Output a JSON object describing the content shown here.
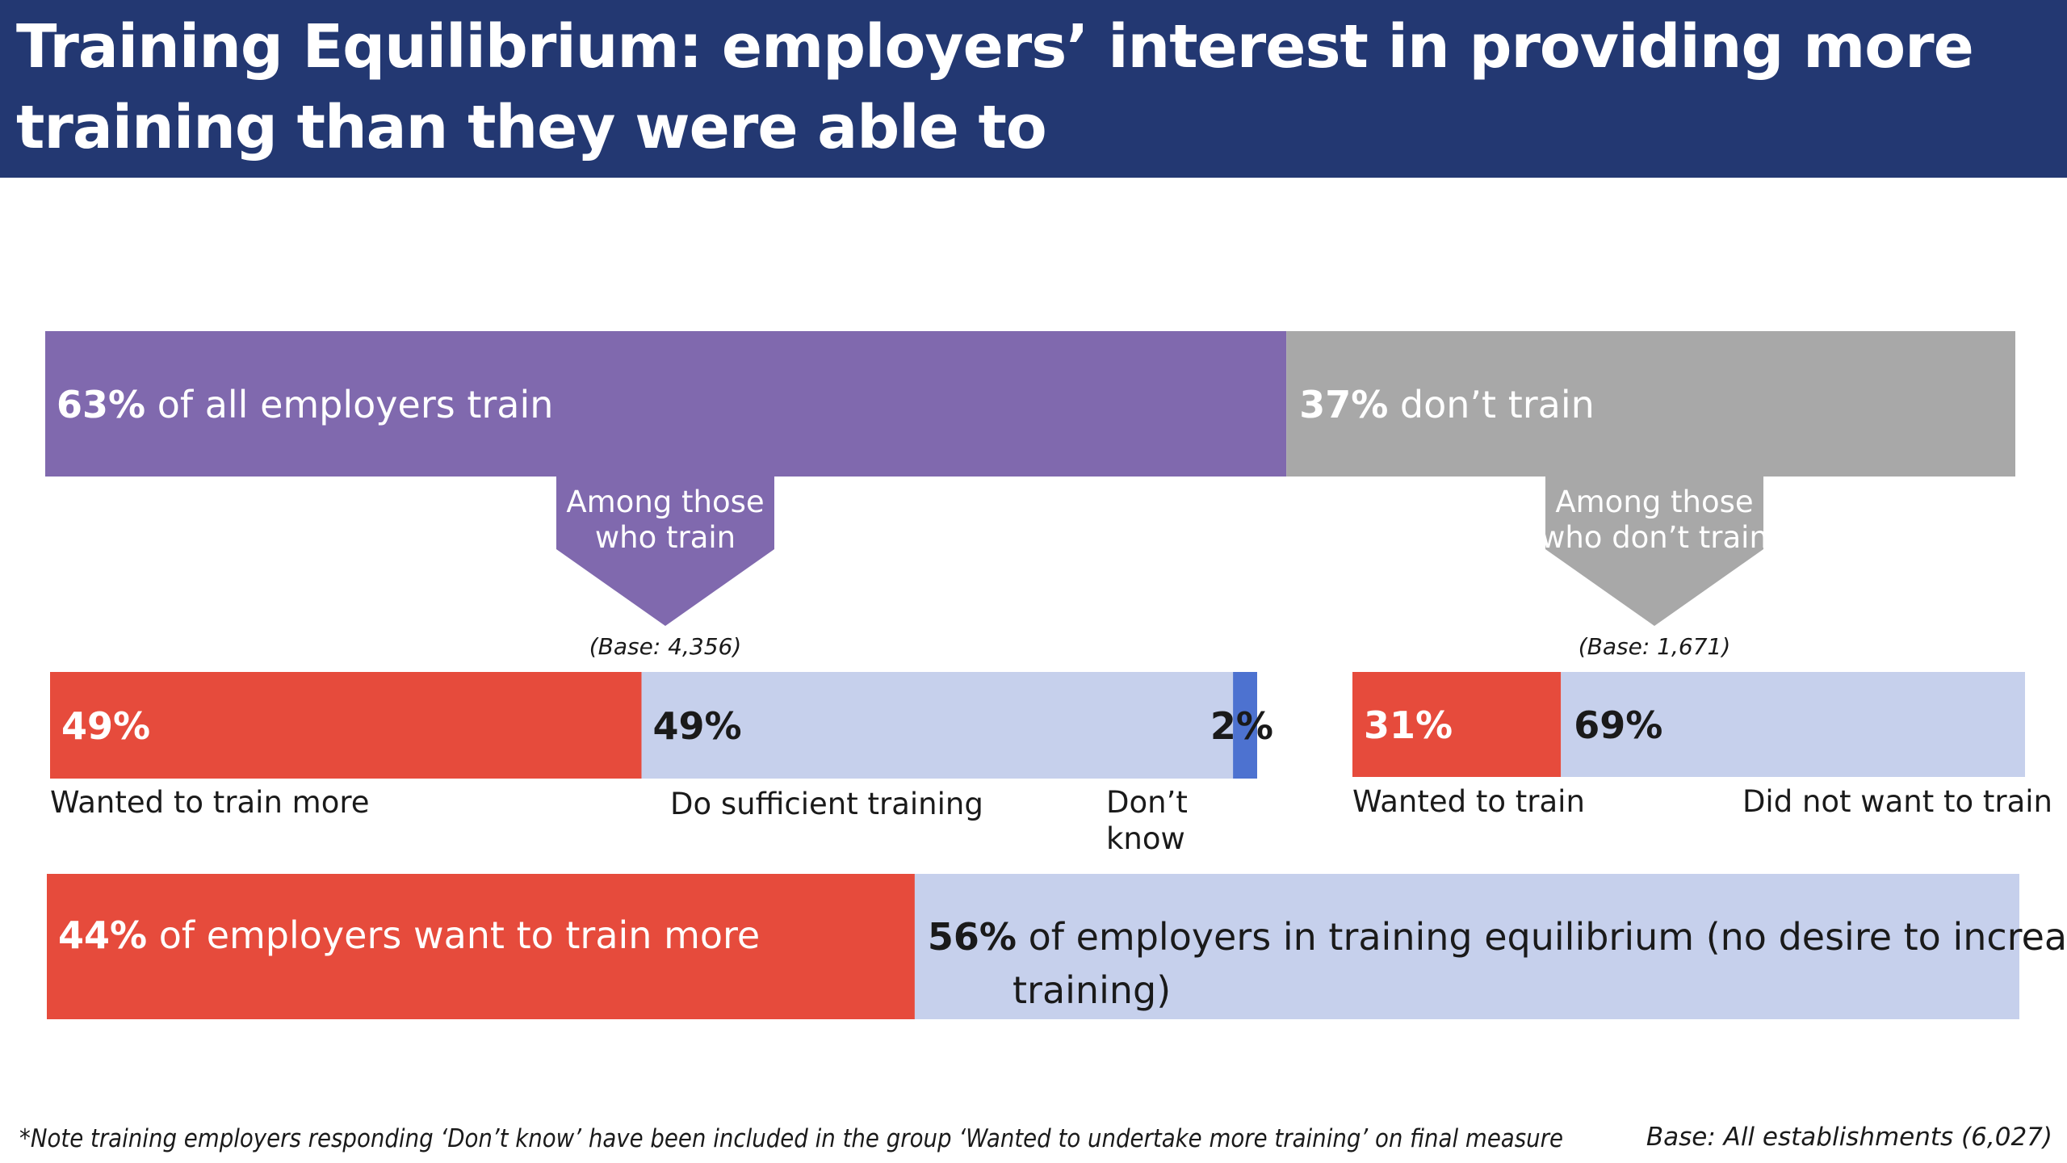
{
  "title": "Training Equilibrium: employers’ interest in providing more training than they were able to",
  "colors": {
    "header_bg": "#233872",
    "train": "#8069AE",
    "dont_train": "#A8A8A8",
    "wanted": "#E64B3C",
    "light": "#C6D0EC",
    "dont_know": "#4D72D0",
    "white_text": "#FFFFFF",
    "dark_text": "#1A1A1A"
  },
  "chart_data": [
    {
      "type": "bar",
      "orientation": "horizontal-stacked",
      "series": [
        {
          "name": "of all employers train",
          "value": 63,
          "label": "63%"
        },
        {
          "name": "don’t train",
          "value": 37,
          "label": "37%"
        }
      ]
    },
    {
      "type": "bar",
      "orientation": "horizontal-stacked",
      "group": "Among those who train",
      "base": "(Base: 4,356)",
      "series": [
        {
          "name": "Wanted to train more",
          "value": 49,
          "label": "49%"
        },
        {
          "name": "Do sufficient training",
          "value": 49,
          "label": "49%"
        },
        {
          "name": "Don’t know",
          "value": 2,
          "label": "2%"
        }
      ]
    },
    {
      "type": "bar",
      "orientation": "horizontal-stacked",
      "group": "Among those who don’t train",
      "base": "(Base: 1,671)",
      "series": [
        {
          "name": "Wanted to train",
          "value": 31,
          "label": "31%"
        },
        {
          "name": "Did not want to train",
          "value": 69,
          "label": "69%"
        }
      ]
    },
    {
      "type": "bar",
      "orientation": "horizontal-stacked",
      "series": [
        {
          "name": "of employers want to train more",
          "value": 44,
          "label": "44%"
        },
        {
          "name": "of employers in training equilibrium (no desire to increase training)",
          "value": 56,
          "label": "56%"
        }
      ]
    }
  ],
  "labels": {
    "top_train_rest": " of all employers train",
    "top_dont_rest": " don’t train",
    "pointer_train_lines": [
      "Among those",
      "who train"
    ],
    "pointer_dont_lines": [
      "Among those",
      "who don’t train"
    ],
    "base_train": "(Base: 4,356)",
    "base_dont": "(Base: 1,671)",
    "cat_wanted_more": "Wanted to train more",
    "cat_sufficient": "Do sufficient training",
    "cat_dont_know_lines": [
      "Don’t",
      "know"
    ],
    "cat_wanted": "Wanted to train",
    "cat_not_wanted": "Did not want to train",
    "bottom_want_rest": " of employers want to train more",
    "bottom_equil_lines": [
      " of employers in training equilibrium (no desire to increase",
      "training)"
    ]
  },
  "footnote": "*Note training employers responding ‘Don’t know’ have been included in the group ‘Wanted to undertake more training’ on final measure",
  "base_all": "Base: All establishments (6,027)"
}
